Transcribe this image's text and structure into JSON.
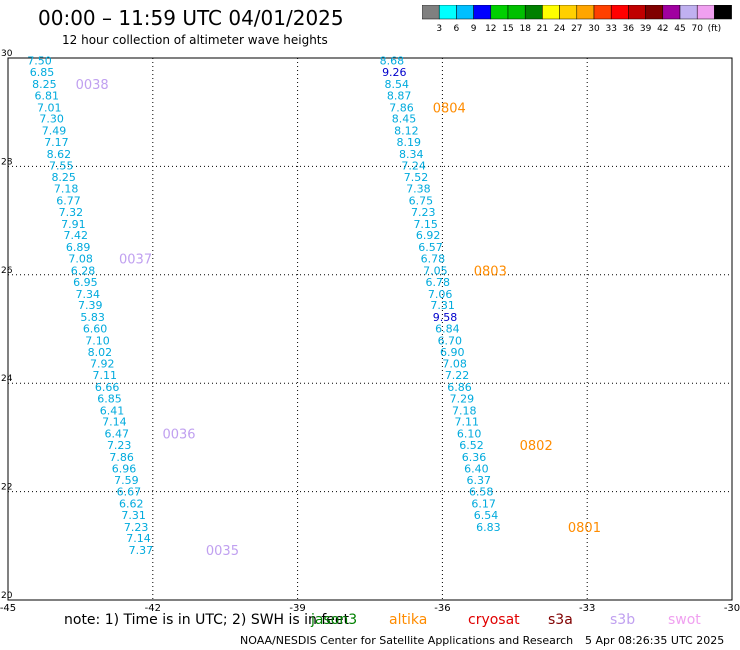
{
  "title": "00:00 – 11:59 UTC 04/01/2025",
  "subtitle": "12 hour collection of altimeter wave heights",
  "colorbar": {
    "labels": [
      "3",
      "6",
      "9",
      "12",
      "15",
      "18",
      "21",
      "24",
      "27",
      "30",
      "33",
      "36",
      "39",
      "42",
      "45",
      "70",
      "(ft)"
    ],
    "colors": [
      "#808080",
      "#00ffff",
      "#00bfff",
      "#0000ff",
      "#00d000",
      "#00c000",
      "#008000",
      "#ffff00",
      "#ffd000",
      "#ffa500",
      "#ff4000",
      "#ff0000",
      "#c00000",
      "#800000",
      "#a000a0",
      "#c0b0f0",
      "#f0a0f0",
      "#000000"
    ]
  },
  "note": "note:  1) Time is in UTC;  2) SWH is in feet",
  "legend": [
    {
      "name": "jason3",
      "color": "#008000"
    },
    {
      "name": "altika",
      "color": "#ff8c00"
    },
    {
      "name": "cryosat",
      "color": "#e00000"
    },
    {
      "name": "s3a",
      "color": "#800000"
    },
    {
      "name": "s3b",
      "color": "#c0a0f0"
    },
    {
      "name": "swot",
      "color": "#f0a0f0"
    }
  ],
  "credit": "NOAA/NESDIS Center for Satellite Applications and Research",
  "stamp": "5 Apr 08:26:35 UTC 2025",
  "chart_data": {
    "type": "scatter",
    "xlim": [
      -45,
      -30
    ],
    "ylim": [
      20,
      30
    ],
    "x_ticks": [
      "-45",
      "-42",
      "-39",
      "-36",
      "-33",
      "-30"
    ],
    "y_ticks": [
      "20",
      "22",
      "24",
      "26",
      "28",
      "30"
    ],
    "grid": true,
    "series": [
      {
        "color": "#00aadd",
        "points": [
          {
            "x": -44.6,
            "y": 29.95,
            "v": "7.50"
          },
          {
            "x": -44.55,
            "y": 29.74,
            "v": "6.85"
          },
          {
            "x": -44.5,
            "y": 29.52,
            "v": "8.25"
          },
          {
            "x": -44.45,
            "y": 29.31,
            "v": "6.81"
          },
          {
            "x": -44.4,
            "y": 29.09,
            "v": "7.01"
          },
          {
            "x": -44.35,
            "y": 28.88,
            "v": "7.30"
          },
          {
            "x": -44.3,
            "y": 28.66,
            "v": "7.49"
          },
          {
            "x": -44.25,
            "y": 28.45,
            "v": "7.17"
          },
          {
            "x": -44.2,
            "y": 28.23,
            "v": "8.62"
          },
          {
            "x": -44.15,
            "y": 28.02,
            "v": "7.55"
          },
          {
            "x": -44.1,
            "y": 27.8,
            "v": "8.25"
          },
          {
            "x": -44.05,
            "y": 27.59,
            "v": "7.18"
          },
          {
            "x": -44.0,
            "y": 27.37,
            "v": "6.77"
          },
          {
            "x": -43.95,
            "y": 27.16,
            "v": "7.32"
          },
          {
            "x": -43.9,
            "y": 26.94,
            "v": "7.91"
          },
          {
            "x": -43.85,
            "y": 26.73,
            "v": "7.42"
          },
          {
            "x": -43.8,
            "y": 26.51,
            "v": "6.89"
          },
          {
            "x": -43.75,
            "y": 26.3,
            "v": "7.08"
          },
          {
            "x": -43.7,
            "y": 26.08,
            "v": "6.28"
          },
          {
            "x": -43.65,
            "y": 25.87,
            "v": "6.95"
          },
          {
            "x": -43.6,
            "y": 25.65,
            "v": "7.34"
          },
          {
            "x": -43.55,
            "y": 25.44,
            "v": "7.39"
          },
          {
            "x": -43.5,
            "y": 25.22,
            "v": "5.83"
          },
          {
            "x": -43.45,
            "y": 25.01,
            "v": "6.60"
          },
          {
            "x": -43.4,
            "y": 24.79,
            "v": "7.10"
          },
          {
            "x": -43.35,
            "y": 24.58,
            "v": "8.02"
          },
          {
            "x": -43.3,
            "y": 24.36,
            "v": "7.92"
          },
          {
            "x": -43.25,
            "y": 24.15,
            "v": "7.11"
          },
          {
            "x": -43.2,
            "y": 23.93,
            "v": "6.66"
          },
          {
            "x": -43.15,
            "y": 23.72,
            "v": "6.85"
          },
          {
            "x": -43.1,
            "y": 23.5,
            "v": "6.41"
          },
          {
            "x": -43.05,
            "y": 23.29,
            "v": "7.14"
          },
          {
            "x": -43.0,
            "y": 23.07,
            "v": "6.47"
          },
          {
            "x": -42.95,
            "y": 22.86,
            "v": "7.23"
          },
          {
            "x": -42.9,
            "y": 22.64,
            "v": "7.86"
          },
          {
            "x": -42.85,
            "y": 22.43,
            "v": "6.96"
          },
          {
            "x": -42.8,
            "y": 22.21,
            "v": "7.59"
          },
          {
            "x": -42.75,
            "y": 22.0,
            "v": "6.67"
          },
          {
            "x": -42.7,
            "y": 21.78,
            "v": "6.62"
          },
          {
            "x": -42.65,
            "y": 21.57,
            "v": "7.31"
          },
          {
            "x": -42.6,
            "y": 21.35,
            "v": "7.23"
          },
          {
            "x": -42.55,
            "y": 21.14,
            "v": "7.14"
          },
          {
            "x": -42.5,
            "y": 20.92,
            "v": "7.37"
          }
        ]
      },
      {
        "color": "#00aadd",
        "points": [
          {
            "x": -37.3,
            "y": 29.95,
            "v": "8.68"
          },
          {
            "x": -37.25,
            "y": 29.74,
            "v": "9.26",
            "c": "#0000cc"
          },
          {
            "x": -37.2,
            "y": 29.52,
            "v": "8.54"
          },
          {
            "x": -37.15,
            "y": 29.31,
            "v": "8.87"
          },
          {
            "x": -37.1,
            "y": 29.09,
            "v": "7.86"
          },
          {
            "x": -37.05,
            "y": 28.88,
            "v": "8.45"
          },
          {
            "x": -37.0,
            "y": 28.66,
            "v": "8.12"
          },
          {
            "x": -36.95,
            "y": 28.45,
            "v": "8.19"
          },
          {
            "x": -36.9,
            "y": 28.23,
            "v": "8.34"
          },
          {
            "x": -36.85,
            "y": 28.02,
            "v": "7.24"
          },
          {
            "x": -36.8,
            "y": 27.8,
            "v": "7.52"
          },
          {
            "x": -36.75,
            "y": 27.59,
            "v": "7.38"
          },
          {
            "x": -36.7,
            "y": 27.37,
            "v": "6.75"
          },
          {
            "x": -36.65,
            "y": 27.16,
            "v": "7.23"
          },
          {
            "x": -36.6,
            "y": 26.94,
            "v": "7.15"
          },
          {
            "x": -36.55,
            "y": 26.73,
            "v": "6.92"
          },
          {
            "x": -36.5,
            "y": 26.51,
            "v": "6.57"
          },
          {
            "x": -36.45,
            "y": 26.3,
            "v": "6.78"
          },
          {
            "x": -36.4,
            "y": 26.08,
            "v": "7.05"
          },
          {
            "x": -36.35,
            "y": 25.87,
            "v": "6.78"
          },
          {
            "x": -36.3,
            "y": 25.65,
            "v": "7.06"
          },
          {
            "x": -36.25,
            "y": 25.44,
            "v": "7.31"
          },
          {
            "x": -36.2,
            "y": 25.22,
            "v": "9.58",
            "c": "#0000cc"
          },
          {
            "x": -36.15,
            "y": 25.01,
            "v": "6.84"
          },
          {
            "x": -36.1,
            "y": 24.79,
            "v": "6.70"
          },
          {
            "x": -36.05,
            "y": 24.58,
            "v": "6.90"
          },
          {
            "x": -36.0,
            "y": 24.36,
            "v": "7.08"
          },
          {
            "x": -35.95,
            "y": 24.15,
            "v": "7.22"
          },
          {
            "x": -35.9,
            "y": 23.93,
            "v": "6.86"
          },
          {
            "x": -35.85,
            "y": 23.72,
            "v": "7.29"
          },
          {
            "x": -35.8,
            "y": 23.5,
            "v": "7.18"
          },
          {
            "x": -35.75,
            "y": 23.29,
            "v": "7.11"
          },
          {
            "x": -35.7,
            "y": 23.07,
            "v": "6.10"
          },
          {
            "x": -35.65,
            "y": 22.86,
            "v": "6.52"
          },
          {
            "x": -35.6,
            "y": 22.64,
            "v": "6.36"
          },
          {
            "x": -35.55,
            "y": 22.43,
            "v": "6.40"
          },
          {
            "x": -35.5,
            "y": 22.21,
            "v": "6.37"
          },
          {
            "x": -35.45,
            "y": 22.0,
            "v": "6.58"
          },
          {
            "x": -35.4,
            "y": 21.78,
            "v": "6.17"
          },
          {
            "x": -35.35,
            "y": 21.57,
            "v": "6.54"
          },
          {
            "x": -35.3,
            "y": 21.35,
            "v": "6.83"
          }
        ]
      }
    ],
    "annotations": [
      {
        "text": "0038",
        "x": -43.6,
        "y": 29.52,
        "color": "#c0a0f0"
      },
      {
        "text": "0037",
        "x": -42.7,
        "y": 26.3,
        "color": "#c0a0f0"
      },
      {
        "text": "0036",
        "x": -41.8,
        "y": 23.07,
        "color": "#c0a0f0"
      },
      {
        "text": "0035",
        "x": -40.9,
        "y": 20.92,
        "color": "#c0a0f0"
      },
      {
        "text": "0804",
        "x": -36.2,
        "y": 29.09,
        "color": "#ff8c00"
      },
      {
        "text": "0803",
        "x": -35.35,
        "y": 26.08,
        "color": "#ff8c00"
      },
      {
        "text": "0802",
        "x": -34.4,
        "y": 22.86,
        "color": "#ff8c00"
      },
      {
        "text": "0801",
        "x": -33.4,
        "y": 21.35,
        "color": "#ff8c00"
      }
    ]
  }
}
